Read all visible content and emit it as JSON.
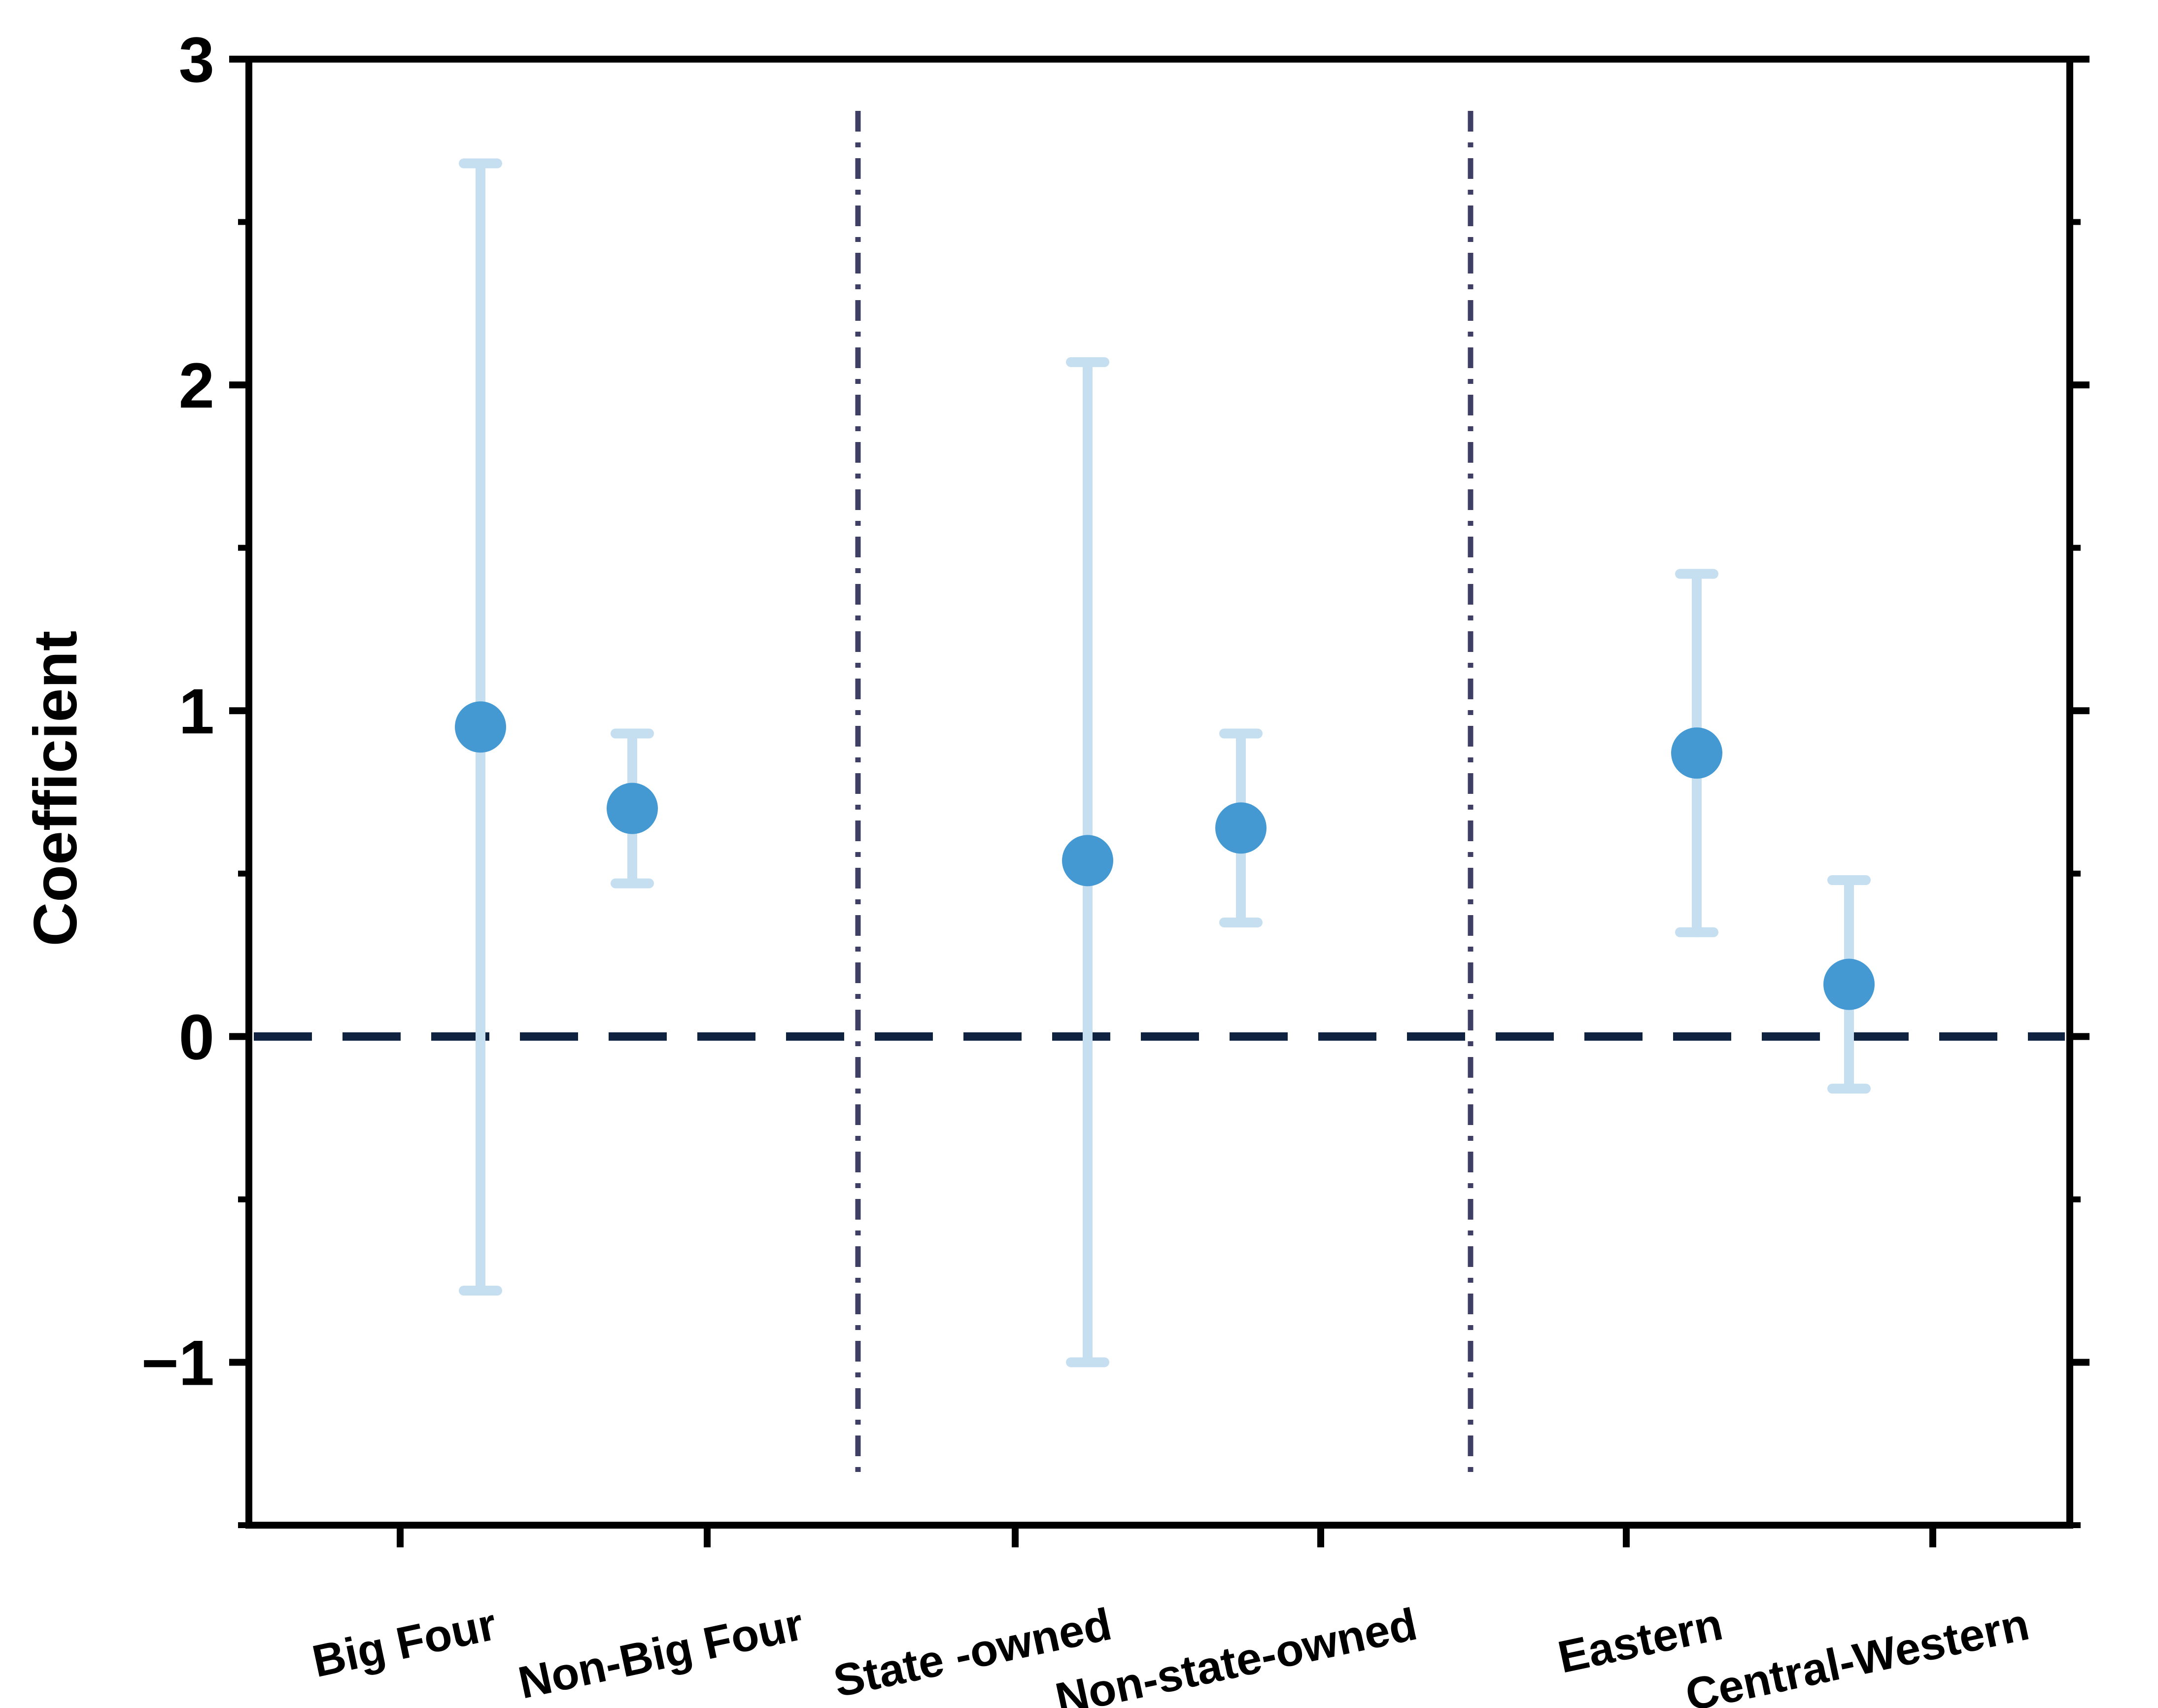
{
  "chart_data": {
    "type": "scatter",
    "title": "",
    "xlabel": "",
    "ylabel": "Coefficient",
    "ylim": [
      -1.5,
      3
    ],
    "yticks": [
      -1,
      0,
      1,
      2,
      3
    ],
    "ytick_labels": [
      "−1",
      "0",
      "1",
      "2",
      "3"
    ],
    "ytick_minor": [
      -1.5,
      -0.5,
      0.5,
      1.5,
      2.5
    ],
    "categories": [
      "Big Four",
      "Non-Big Four",
      "State -owned",
      "Non-state-owned",
      "Eastern",
      "Central-Western"
    ],
    "series": [
      {
        "values": [
          0.95,
          0.7,
          0.54,
          0.64,
          0.87,
          0.16
        ],
        "ci_lower": [
          -0.78,
          0.47,
          -1.0,
          0.35,
          0.32,
          -0.16
        ],
        "ci_upper": [
          2.68,
          0.93,
          2.07,
          0.93,
          1.42,
          0.48
        ]
      }
    ],
    "reference_line_y": 0,
    "group_separators_after_index": [
      1,
      3
    ],
    "grid": false,
    "colors": {
      "point": "#4499d3",
      "error_bar": "#c5dff1",
      "zero_line": "#0f2240",
      "separator": "#3f3f66",
      "axis": "#000000"
    }
  }
}
